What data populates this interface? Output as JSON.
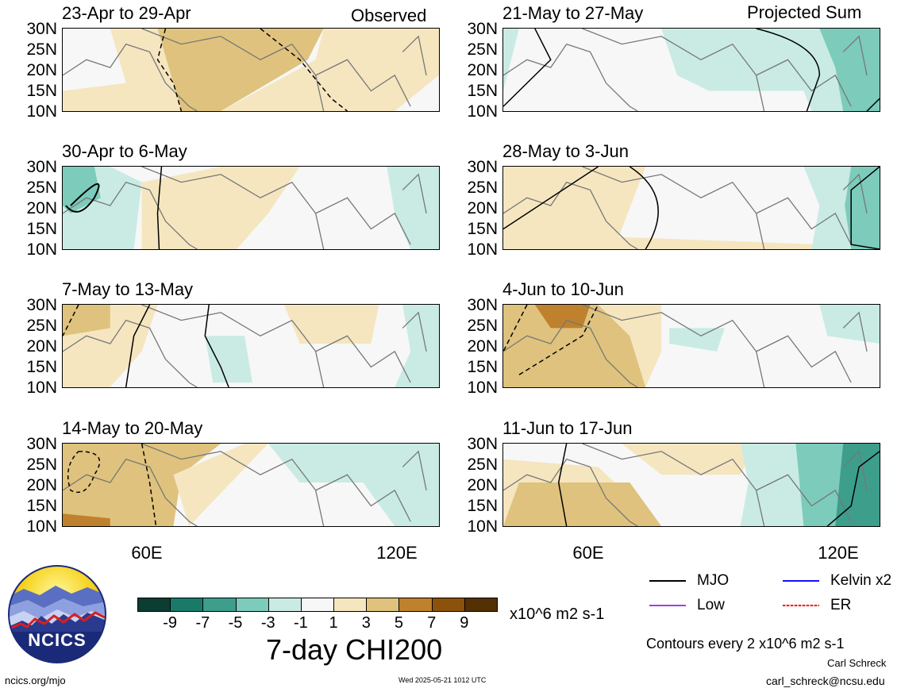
{
  "headers": {
    "observed": "Observed",
    "projected": "Projected Sum"
  },
  "y_ticks": [
    "30N",
    "25N",
    "20N",
    "15N",
    "10N"
  ],
  "x_ticks": [
    "60E",
    "120E"
  ],
  "panels": [
    {
      "label": "23-Apr to 29-Apr"
    },
    {
      "label": "30-Apr to 6-May"
    },
    {
      "label": "7-May to 13-May"
    },
    {
      "label": "14-May to 20-May"
    },
    {
      "label": "21-May to 27-May"
    },
    {
      "label": "28-May to 3-Jun"
    },
    {
      "label": "4-Jun to 10-Jun"
    },
    {
      "label": "11-Jun to 17-Jun"
    }
  ],
  "colorbar": {
    "colors": [
      "#0b3d32",
      "#1a7a6a",
      "#3d9e8c",
      "#7ccbbb",
      "#c9ebe4",
      "#f7f7f7",
      "#f5e6c0",
      "#dfc27d",
      "#bf812d",
      "#8c510a",
      "#543005"
    ],
    "labels": [
      "-9",
      "-7",
      "-5",
      "-3",
      "-1",
      "1",
      "3",
      "5",
      "7",
      "9"
    ],
    "units": "x10^6 m2 s-1",
    "title": "7-day CHI200"
  },
  "legend": {
    "items": [
      {
        "name": "MJO",
        "color": "#000000"
      },
      {
        "name": "Kelvin x2",
        "color": "#1010ff"
      },
      {
        "name": "Low",
        "color": "#a040e0"
      },
      {
        "name": "ER",
        "color": "#ff0000"
      }
    ],
    "contours_note": "Contours every 2 x10^6 m2 s-1"
  },
  "logo": {
    "text": "NCICS"
  },
  "footer": {
    "url": "ncics.org/mjo",
    "timestamp": "Wed 2025-05-21 1012 UTC",
    "author": "Carl Schreck",
    "email": "carl_schreck@ncsu.edu"
  }
}
